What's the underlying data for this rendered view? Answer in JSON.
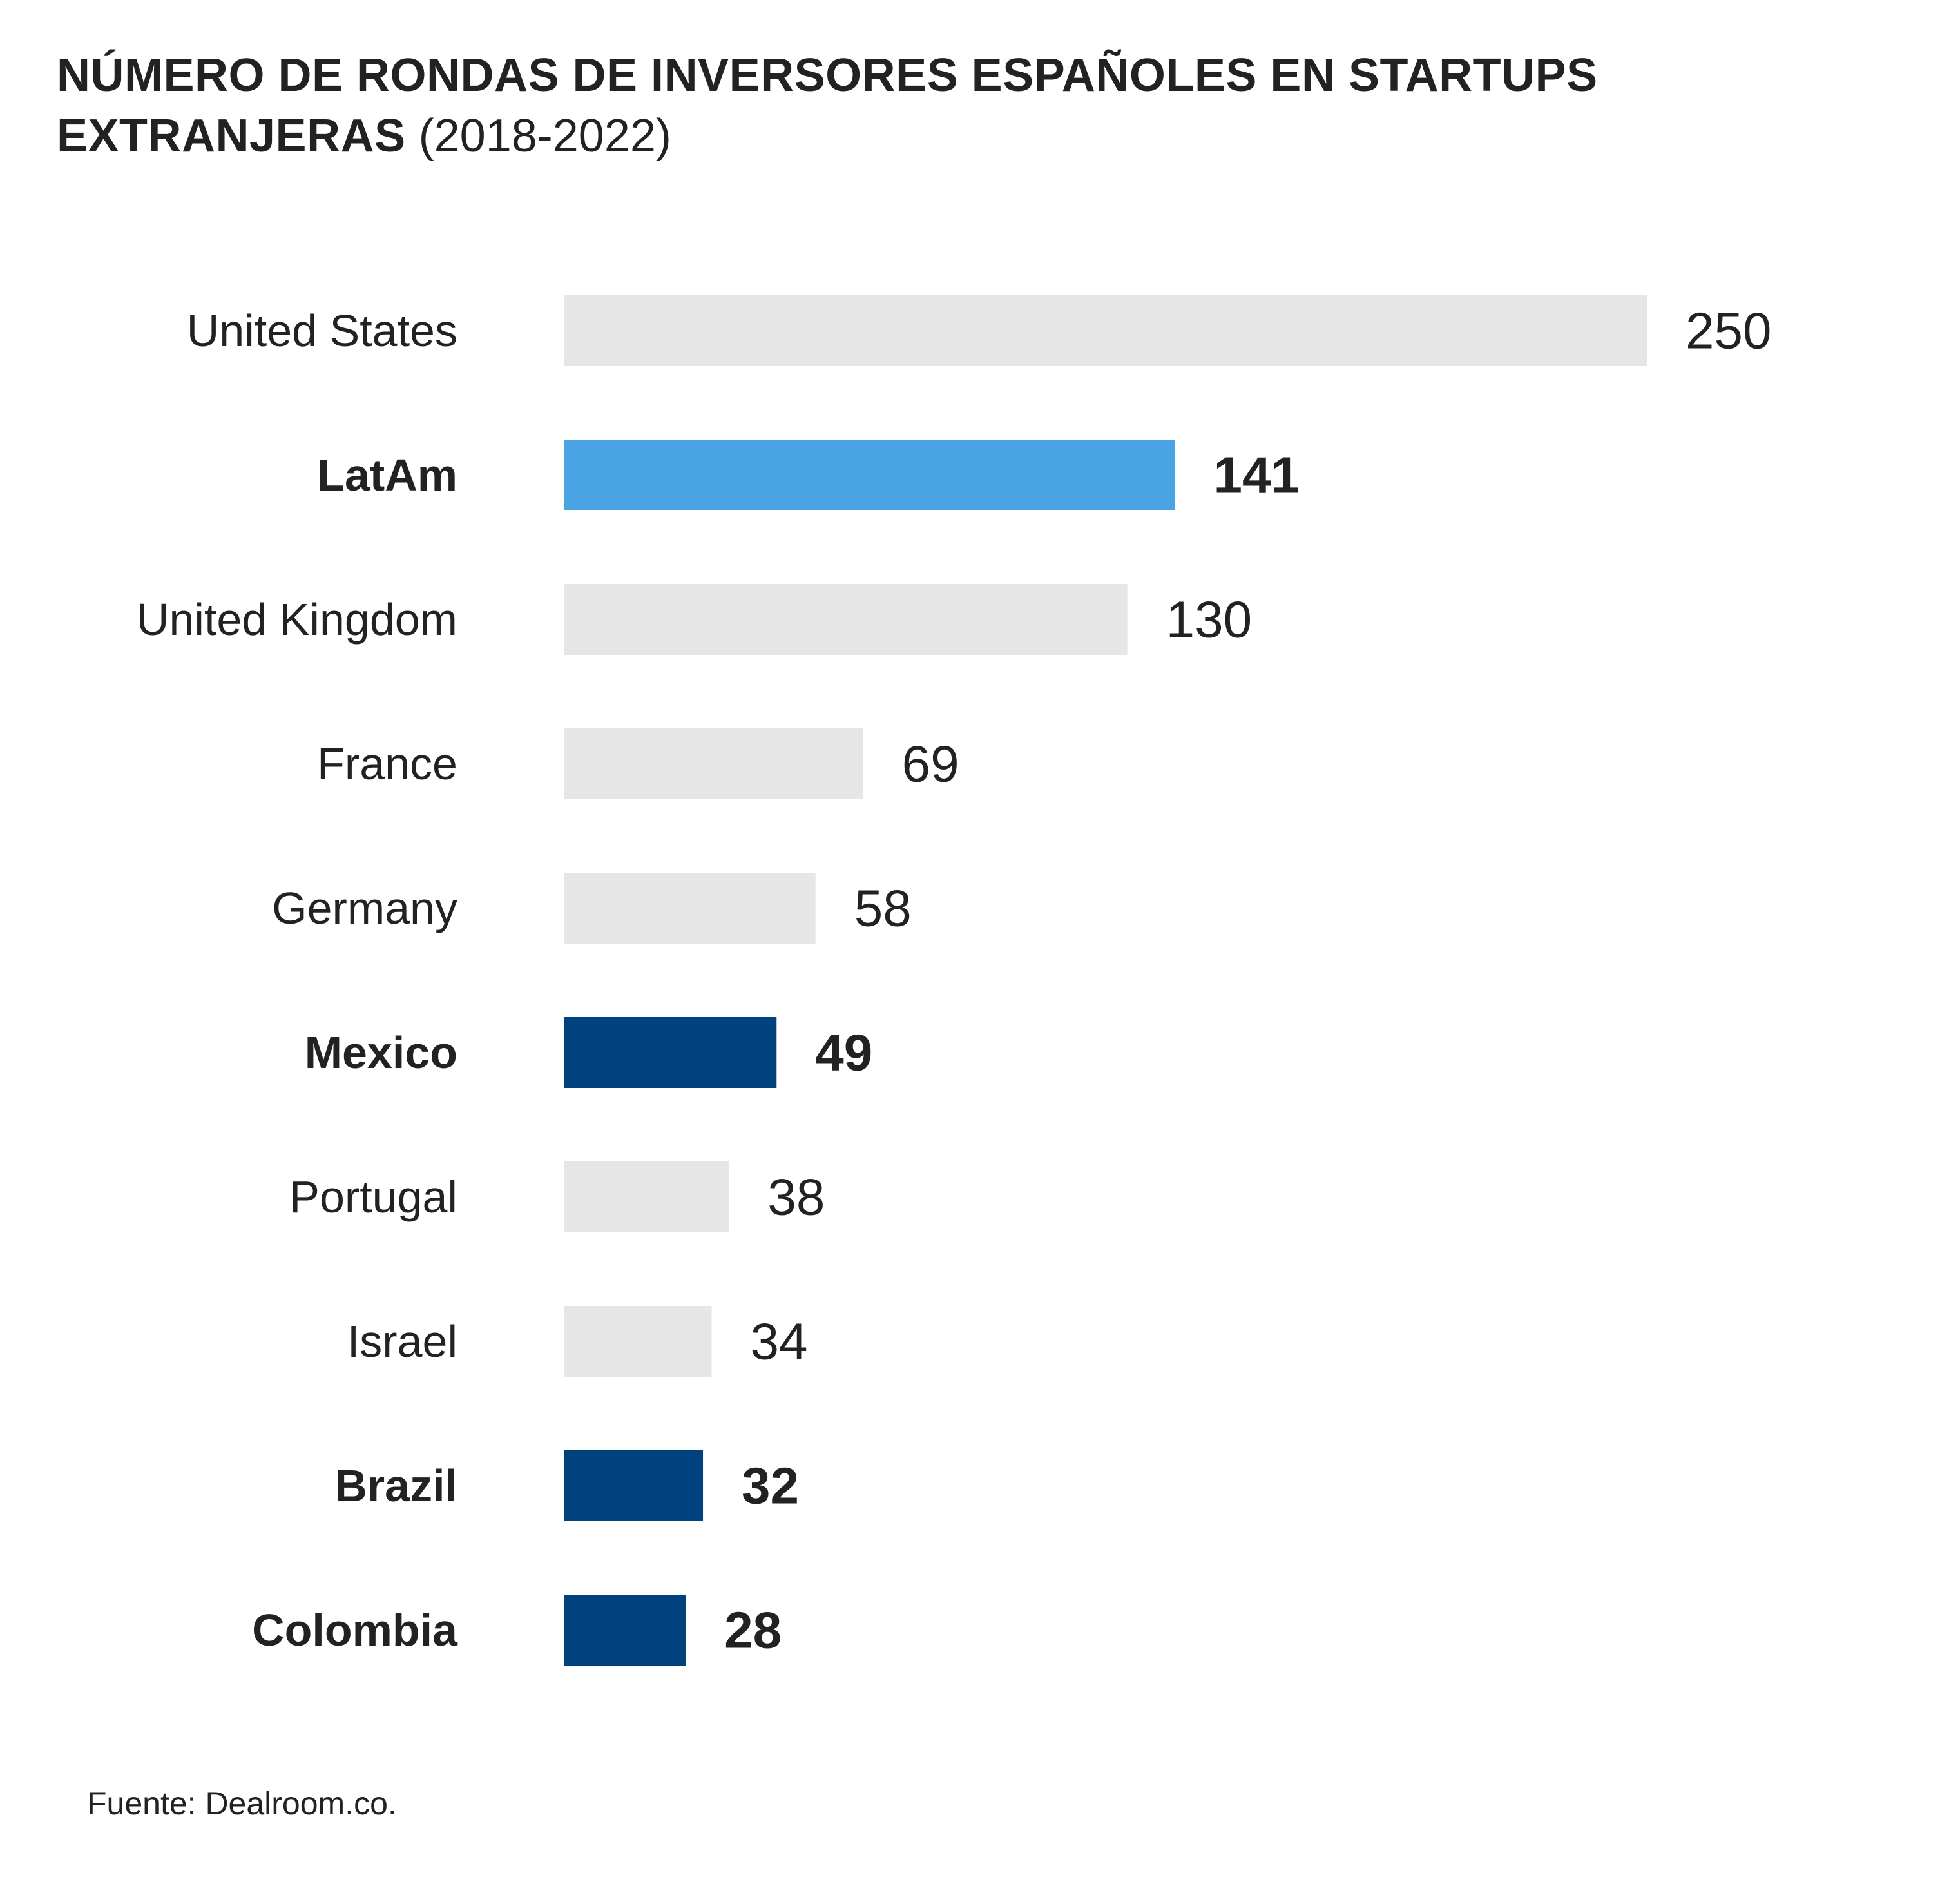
{
  "title": {
    "main": "NÚMERO DE RONDAS DE INVERSORES ESPAÑOLES EN STARTUPS EXTRANJERAS",
    "sub": "(2018-2022)"
  },
  "source": "Fuente: Dealroom.co.",
  "colors": {
    "default_bar": "#e6e6e6",
    "latam_bar": "#4aa3e2",
    "latam_country_bar": "#00427e",
    "text": "#222222"
  },
  "chart_data": {
    "type": "bar",
    "orientation": "horizontal",
    "title": "NÚMERO DE RONDAS DE INVERSORES ESPAÑOLES EN STARTUPS EXTRANJERAS (2018-2022)",
    "xlabel": "",
    "ylabel": "",
    "grid": false,
    "categories": [
      "United States",
      "LatAm",
      "United Kingdom",
      "France",
      "Germany",
      "Mexico",
      "Portugal",
      "Israel",
      "Brazil",
      "Colombia"
    ],
    "values": [
      250,
      141,
      130,
      69,
      58,
      49,
      38,
      34,
      32,
      28
    ],
    "highlight": [
      "default",
      "latam",
      "default",
      "default",
      "default",
      "latam_country",
      "default",
      "default",
      "latam_country",
      "latam_country"
    ],
    "bold": [
      false,
      true,
      false,
      false,
      false,
      true,
      false,
      false,
      true,
      true
    ]
  }
}
